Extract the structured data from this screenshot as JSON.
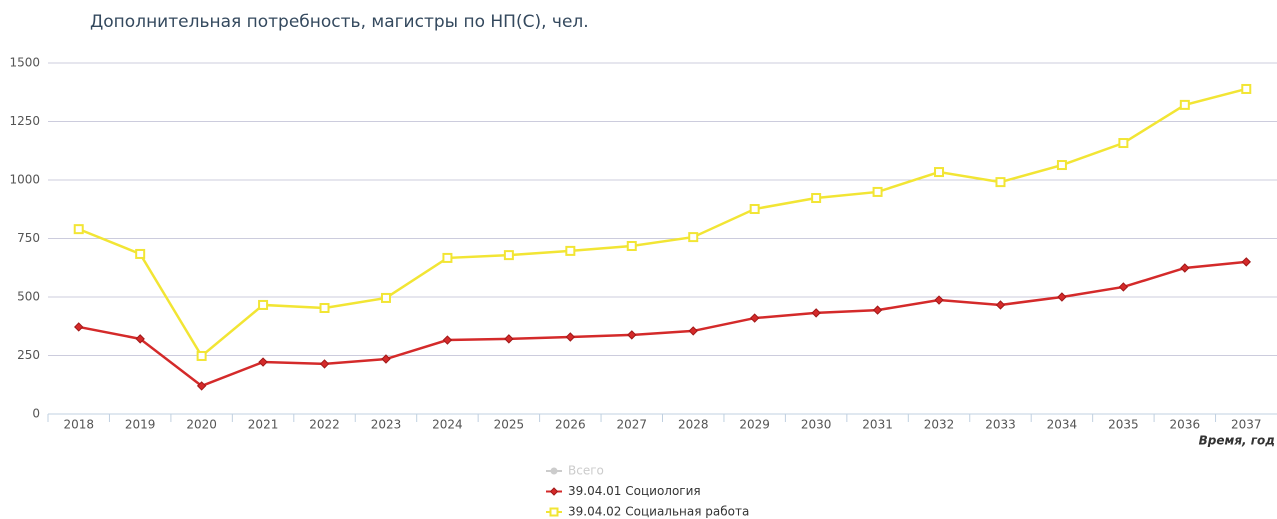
{
  "chart_data": {
    "type": "line",
    "title": "Дополнительная потребность, магистры по НП(С), чел.",
    "x_label": "Время, год",
    "categories": [
      "2018",
      "2019",
      "2020",
      "2021",
      "2022",
      "2023",
      "2024",
      "2025",
      "2026",
      "2027",
      "2028",
      "2029",
      "2030",
      "2031",
      "2032",
      "2033",
      "2034",
      "2035",
      "2036",
      "2037"
    ],
    "series": [
      {
        "name": "Всего",
        "color": "#cccccc",
        "visible": false
      },
      {
        "name": "39.04.01 Социология",
        "color": "#d42a2a",
        "marker": "diamond",
        "values": [
          372,
          321,
          120,
          222,
          214,
          235,
          316,
          321,
          329,
          338,
          355,
          410,
          432,
          444,
          487,
          466,
          500,
          543,
          624,
          650
        ]
      },
      {
        "name": "39.04.02 Социальная работа",
        "color": "#f2e534",
        "marker": "square",
        "values": [
          790,
          684,
          248,
          466,
          453,
          496,
          667,
          679,
          697,
          718,
          756,
          876,
          923,
          949,
          1034,
          991,
          1064,
          1158,
          1321,
          1389
        ]
      }
    ],
    "ylim": [
      0,
      1500
    ],
    "yticks": [
      0,
      250,
      500,
      750,
      1000,
      1250,
      1500
    ],
    "grid": true
  }
}
